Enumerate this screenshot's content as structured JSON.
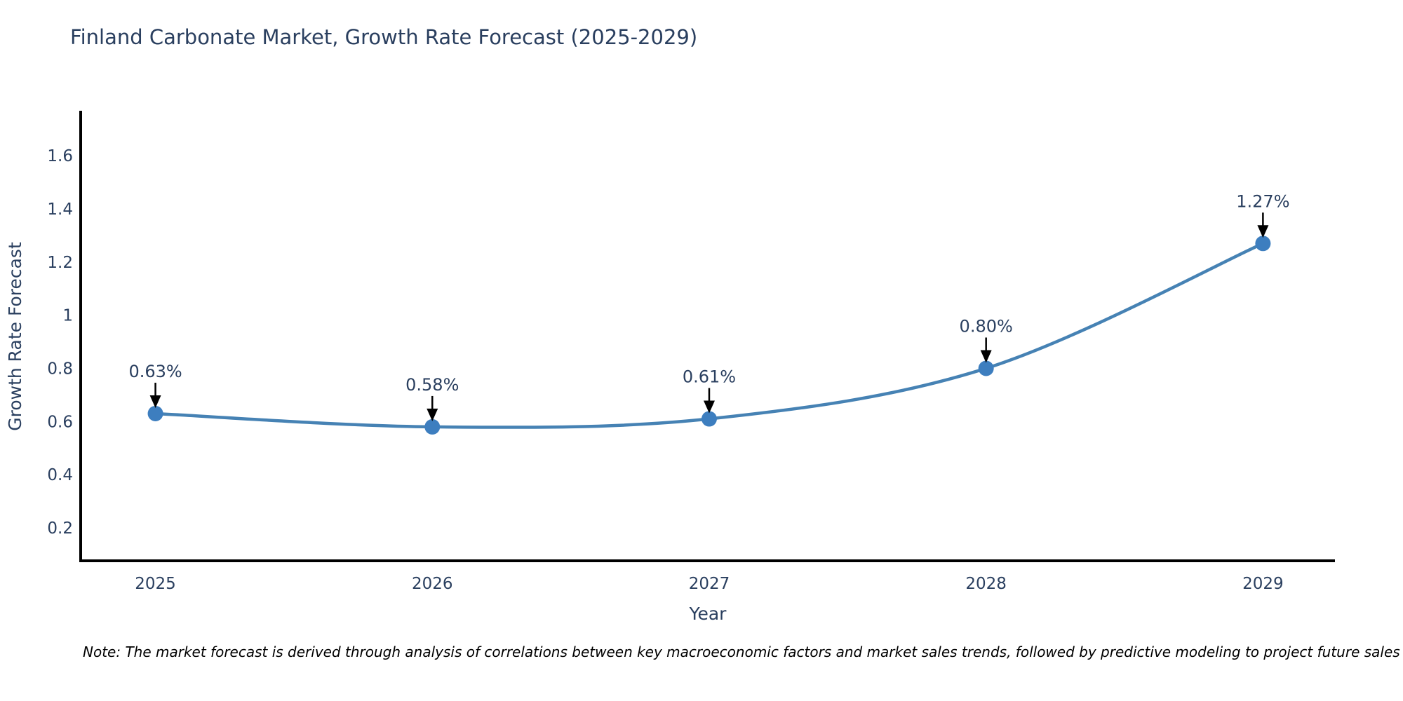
{
  "chart_data": {
    "type": "line",
    "title": "Finland Carbonate Market, Growth Rate Forecast (2025-2029)",
    "xlabel": "Year",
    "ylabel": "Growth Rate Forecast",
    "x": [
      2025,
      2026,
      2027,
      2028,
      2029
    ],
    "series": [
      {
        "name": "Growth Rate Forecast",
        "values": [
          0.63,
          0.58,
          0.61,
          0.8,
          1.27
        ],
        "point_labels": [
          "0.63%",
          "0.58%",
          "0.61%",
          "0.80%",
          "1.27%"
        ]
      }
    ],
    "x_tick_labels": [
      "2025",
      "2026",
      "2027",
      "2028",
      "2029"
    ],
    "y_tick_values": [
      0.2,
      0.4,
      0.6,
      0.8,
      1,
      1.2,
      1.4,
      1.6
    ],
    "y_tick_labels": [
      "0.2",
      "0.4",
      "0.6",
      "0.8",
      "1",
      "1.2",
      "1.4",
      "1.6"
    ],
    "xlim": [
      2024.73,
      2029.26
    ],
    "ylim": [
      0.076,
      1.764
    ],
    "line_shape": "spline",
    "grid": false,
    "legend": "none",
    "colors": {
      "line": "#4682b4",
      "marker": "#3d7ebf",
      "axis": "#000000",
      "text": "#2a3f5f",
      "arrow": "#000000"
    }
  },
  "note": "Note: The market forecast is derived through analysis of correlations between key macroeconomic factors and market sales trends, followed by predictive modeling to project future sales"
}
